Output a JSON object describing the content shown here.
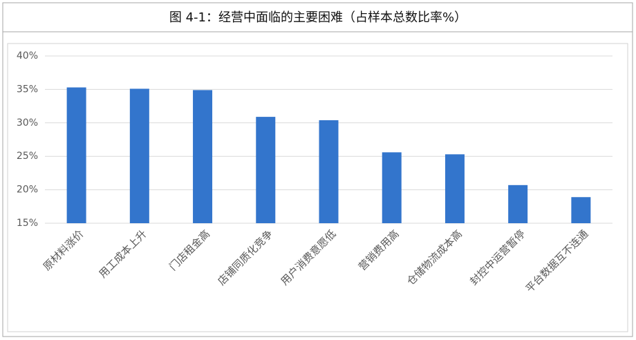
{
  "chart_data": {
    "type": "bar",
    "title": "图 4-1：经营中面临的主要困难（占样本总数比率%）",
    "categories": [
      "原材料涨价",
      "用工成本上升",
      "门店租金高",
      "店铺同质化竞争",
      "用户消费意愿低",
      "营销费用高",
      "仓储物流成本高",
      "封控中运营暂停",
      "平台数据互不连通"
    ],
    "values": [
      35.3,
      35.1,
      34.9,
      30.9,
      30.4,
      25.6,
      25.3,
      20.7,
      18.9
    ],
    "color": "#3375cc",
    "ylim": [
      15,
      40
    ],
    "yticks": [
      {
        "value": 15,
        "label": "15%"
      },
      {
        "value": 20,
        "label": "20%"
      },
      {
        "value": 25,
        "label": "25%"
      },
      {
        "value": 30,
        "label": "30%"
      },
      {
        "value": 35,
        "label": "35%"
      },
      {
        "value": 40,
        "label": "40%"
      }
    ],
    "grid": true
  }
}
